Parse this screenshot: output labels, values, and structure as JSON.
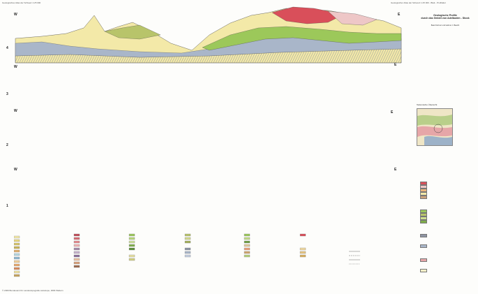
{
  "header": {
    "left_note": "Geologisches Atlas der Schweiz 1:25 000",
    "right_note": "Geologischer Atlas der Schweiz 1:25 000 - Blatt - Profiltafel"
  },
  "title": {
    "line1": "Geologische Profile",
    "line2": "durch das Gebiet von Adelboden - Stock",
    "author": "Beat Frehner und Helmut J. Baechi"
  },
  "profiles": [
    {
      "number": "4",
      "west": "W",
      "east": "E"
    },
    {
      "number": "3",
      "west": "W",
      "east": "E"
    },
    {
      "number": "2",
      "west": "W",
      "east": "E"
    },
    {
      "number": "1",
      "west": "W",
      "east": "E"
    }
  ],
  "inset": {
    "title": "Tektonische Übersicht"
  },
  "footer": {
    "copyright": "© 2009 Bundesamt für Landestopografie swisstopo, 3084 Wabern"
  },
  "colors": {
    "molasse_yellow": "#f3e9a8",
    "flysch_green": "#9cc85a",
    "limestone_blue": "#a9b6c9",
    "crystalline_red": "#d94f5a",
    "pink": "#eec7c7",
    "olive": "#b8c46a",
    "grey": "#8e94a3"
  }
}
